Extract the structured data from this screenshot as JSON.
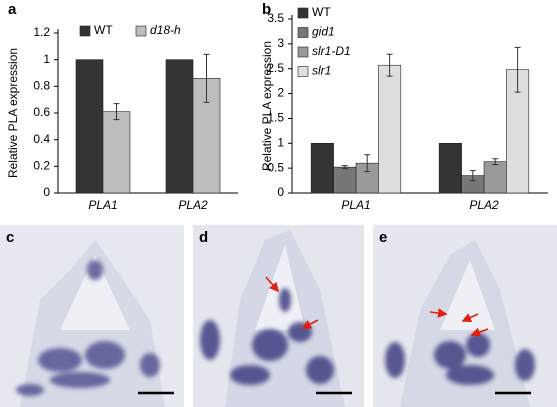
{
  "chart_data": [
    {
      "type": "bar",
      "panel_label": "a",
      "y_label": "Relative PLA expression",
      "categories": [
        "PLA1",
        "PLA2"
      ],
      "series": [
        {
          "name": "WT",
          "color": "#333333",
          "values": [
            1,
            1
          ]
        },
        {
          "name": "d18-h",
          "color": "#bdbdbd",
          "values": [
            0.61,
            0.86
          ],
          "errors": [
            0.06,
            0.18
          ]
        }
      ],
      "ylim": [
        0,
        1.2
      ],
      "yticks": [
        0,
        0.2,
        0.4,
        0.6,
        0.8,
        1,
        1.2
      ]
    },
    {
      "type": "bar",
      "panel_label": "b",
      "y_label": "Relative PLA expression",
      "categories": [
        "PLA1",
        "PLA2"
      ],
      "series": [
        {
          "name": "WT",
          "color": "#333333",
          "values": [
            1,
            1
          ]
        },
        {
          "name": "gid1",
          "color": "#777777",
          "values": [
            0.52,
            0.35
          ],
          "errors": [
            0.03,
            0.1
          ]
        },
        {
          "name": "slr1-D1",
          "color": "#9a9a9a",
          "values": [
            0.6,
            0.63
          ],
          "errors": [
            0.17,
            0.06
          ]
        },
        {
          "name": "slr1",
          "color": "#dedede",
          "values": [
            2.57,
            2.48
          ],
          "errors": [
            0.22,
            0.45
          ]
        }
      ],
      "ylim": [
        0,
        3.5
      ],
      "yticks": [
        0,
        0.5,
        1,
        1.5,
        2,
        2.5,
        3,
        3.5
      ]
    }
  ],
  "panels": [
    {
      "label": "c"
    },
    {
      "label": "d"
    },
    {
      "label": "e"
    }
  ]
}
